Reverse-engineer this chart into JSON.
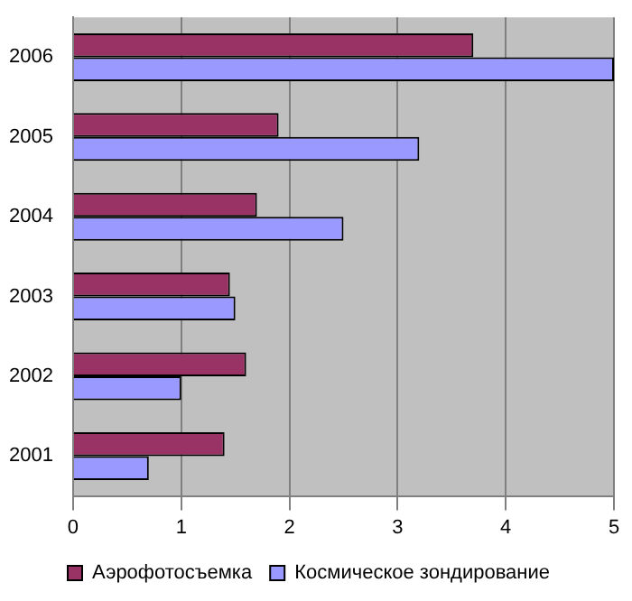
{
  "chart_data": {
    "type": "bar",
    "orientation": "horizontal",
    "categories": [
      "2006",
      "2005",
      "2004",
      "2003",
      "2002",
      "2001"
    ],
    "series": [
      {
        "name": "Аэрофотосъемка",
        "color": "#993366",
        "values": [
          3.7,
          1.9,
          1.7,
          1.45,
          1.6,
          1.4
        ]
      },
      {
        "name": "Космическое зондирование",
        "color": "#9999ff",
        "values": [
          5.0,
          3.2,
          2.5,
          1.5,
          1.0,
          0.7
        ]
      }
    ],
    "xlim": [
      0,
      5
    ],
    "xticks": [
      0,
      1,
      2,
      3,
      4,
      5
    ],
    "grid": "x",
    "legend": "bottom"
  }
}
